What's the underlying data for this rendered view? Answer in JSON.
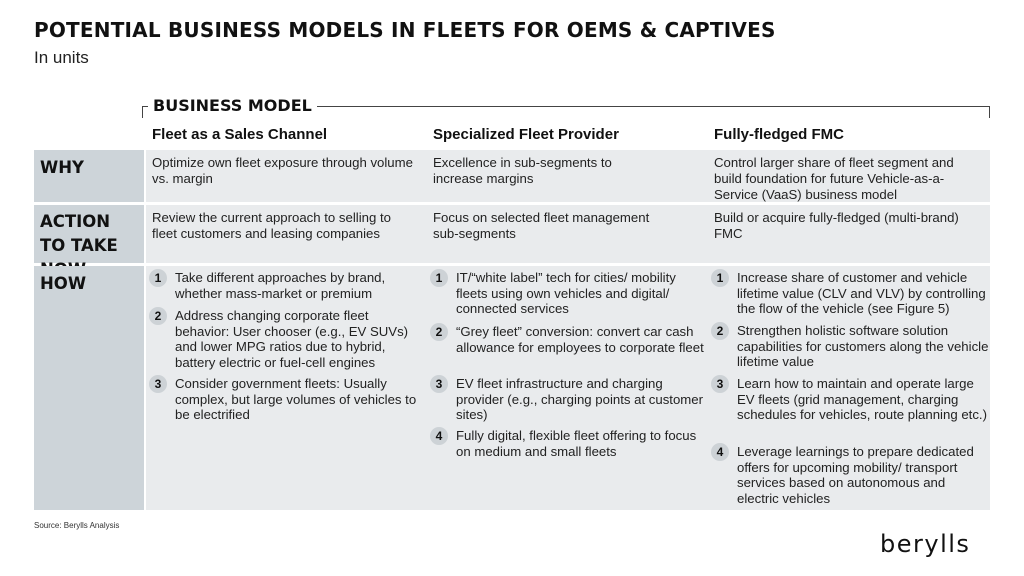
{
  "title": "POTENTIAL BUSINESS MODELS IN FLEETS FOR OEMS & CAPTIVES",
  "subtitle": "In units",
  "business_model_label": "BUSINESS MODEL",
  "columns": [
    "Fleet as a Sales Channel",
    "Specialized Fleet Provider",
    "Fully-fledged FMC"
  ],
  "rows": {
    "why": {
      "label": "WHY",
      "cells": [
        "Optimize own fleet exposure through volume vs. margin",
        "Excellence in sub-segments to increase margins",
        "Control larger share of fleet segment and build foundation for future Vehicle-as-a-Service (VaaS) business model"
      ]
    },
    "action": {
      "label": "ACTION TO TAKE NOW",
      "cells": [
        "Review the current approach to selling to fleet customers and leasing companies",
        "Focus on selected fleet management sub-segments",
        "Build or acquire fully-fledged (multi-brand) FMC"
      ]
    },
    "how": {
      "label": "HOW",
      "col1": [
        {
          "n": "1",
          "text": "Take different approaches by brand, whether mass-market or premium"
        },
        {
          "n": "2",
          "text": "Address changing corporate fleet behavior: User chooser (e.g., EV SUVs) and lower MPG ratios due to hybrid, battery electric or fuel-cell engines"
        },
        {
          "n": "3",
          "text": "Consider government fleets: Usually complex, but large volumes of vehicles to be electrified"
        }
      ],
      "col2": [
        {
          "n": "1",
          "text": "IT/“white label” tech for cities/ mobility fleets using own vehicles and digital/ connected services"
        },
        {
          "n": "2",
          "text": "“Grey fleet” conversion: convert car cash allowance for employees to corporate fleet"
        },
        {
          "n": "3",
          "text": "EV fleet infrastructure and charging provider (e.g., charging points at customer sites)"
        },
        {
          "n": "4",
          "text": "Fully digital, flexible fleet offering to focus on medium and small fleets"
        }
      ],
      "col3": [
        {
          "n": "1",
          "text": "Increase share of customer and vehicle lifetime value (CLV and VLV) by controlling the flow of the vehicle (see Figure 5)"
        },
        {
          "n": "2",
          "text": "Strengthen holistic software solution capabilities for customers along the vehicle lifetime value"
        },
        {
          "n": "3",
          "text": "Learn how to maintain and operate large EV fleets (grid management, charging schedules for vehicles, route planning etc.)"
        },
        {
          "n": "4",
          "text": "Leverage learnings to prepare dedicated offers for upcoming mobility/ transport services based on autonomous and electric vehicles"
        }
      ]
    }
  },
  "source": "Source: Berylls Analysis",
  "logo": "berylls"
}
